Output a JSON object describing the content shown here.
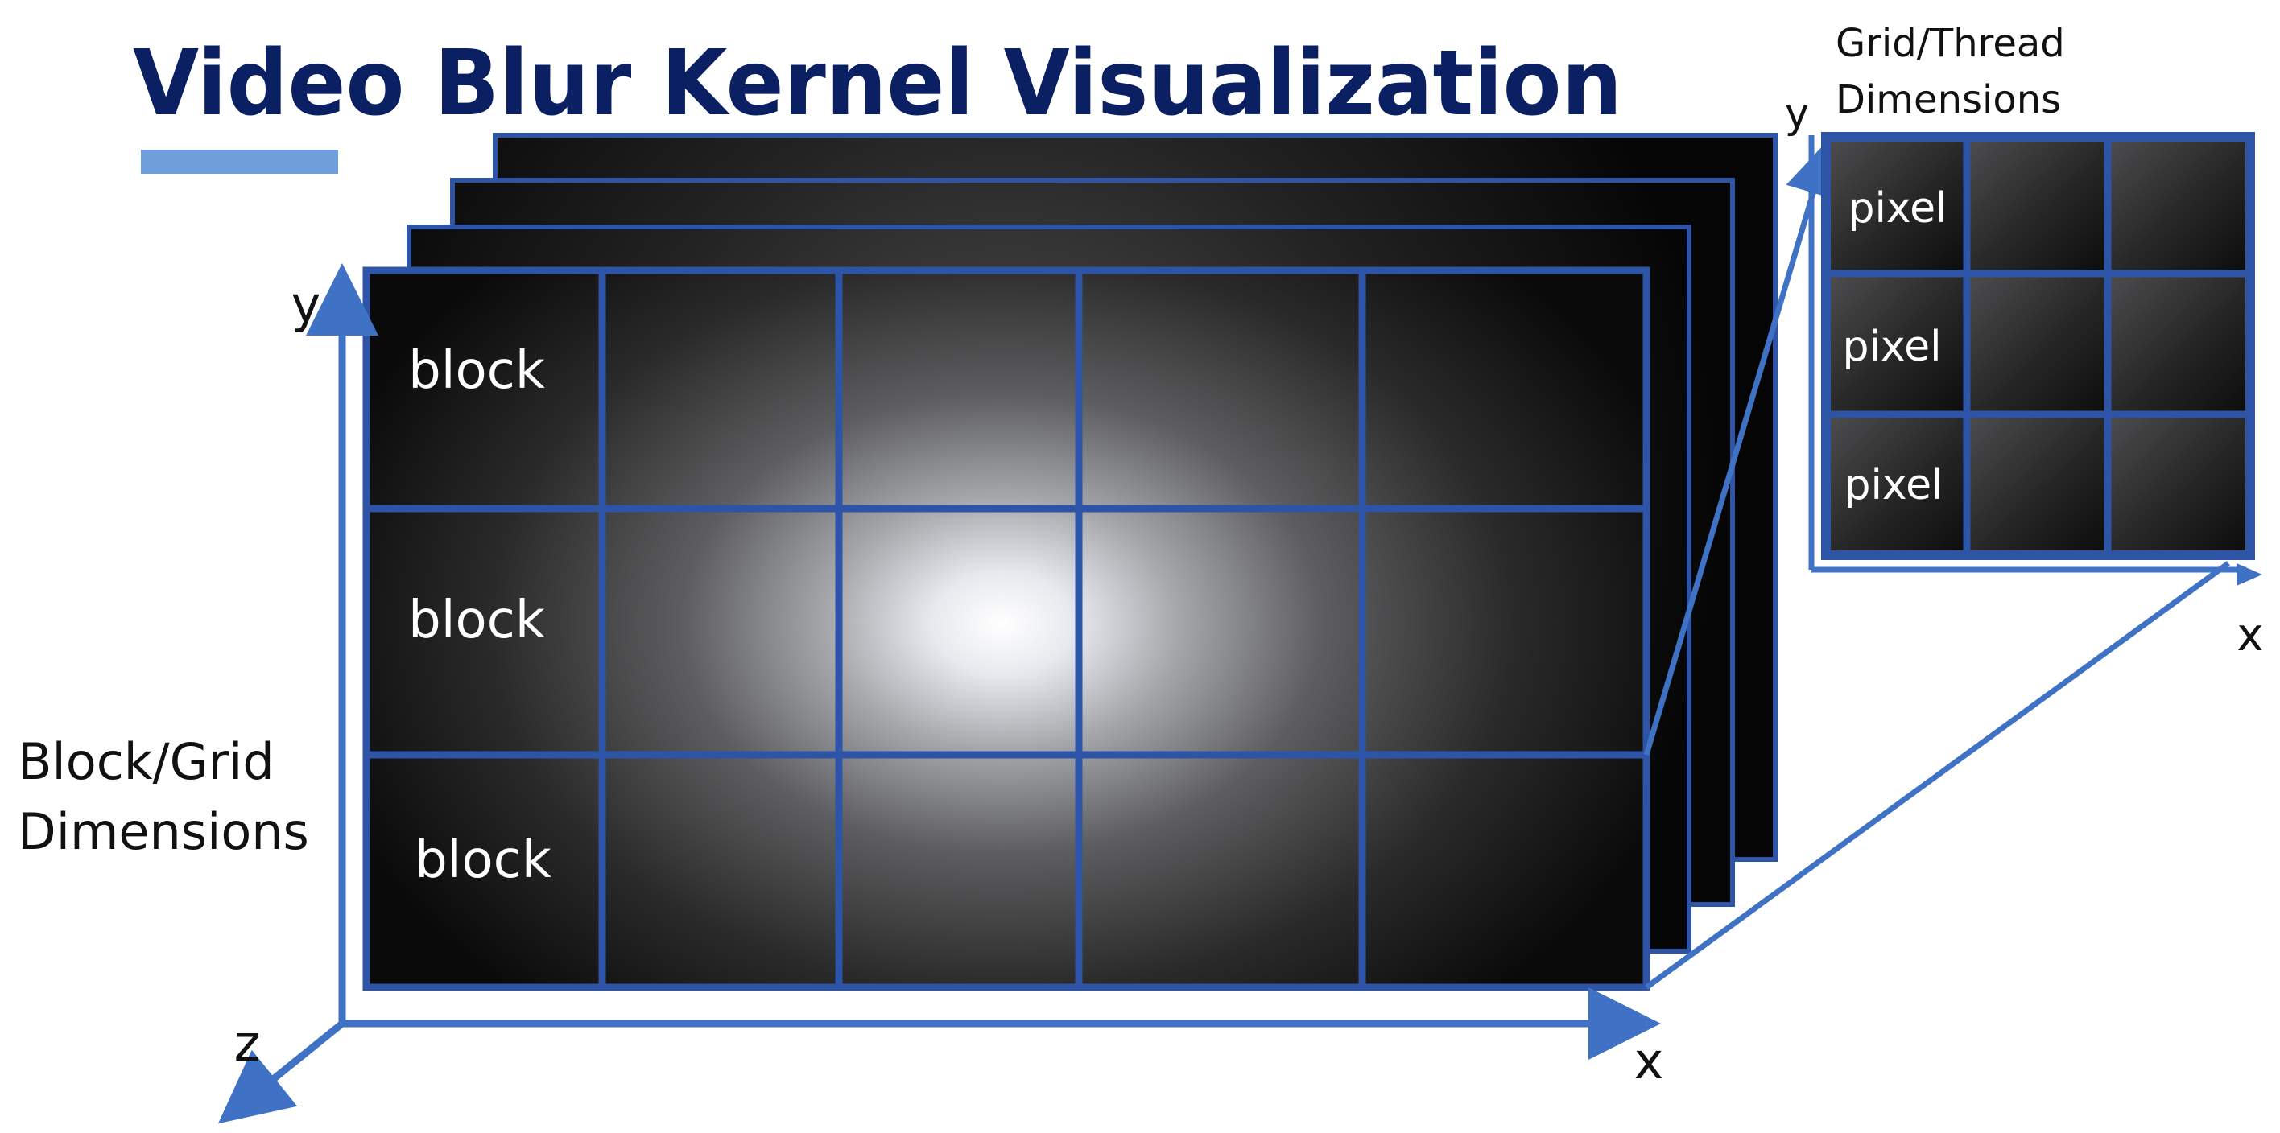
{
  "title": "Video Blur Kernel Visualization",
  "colors": {
    "title": "#0b2063",
    "accent_bar": "#6fa0dc",
    "grid_line": "#2d54a6",
    "axis": "#3f72c4",
    "frame_dark": "#050505",
    "glow": "#ffffff"
  },
  "grid": {
    "caption_line1": "Block/Grid",
    "caption_line2": "Dimensions",
    "row_labels": [
      "block",
      "block",
      "block"
    ],
    "axes": {
      "x": "x",
      "y": "y",
      "z": "z"
    }
  },
  "block": {
    "caption_line1": "Grid/Thread",
    "caption_line2": "Dimensions",
    "row_labels": [
      "pixel",
      "pixel",
      "pixel"
    ],
    "axes": {
      "x": "x",
      "y": "y"
    }
  }
}
